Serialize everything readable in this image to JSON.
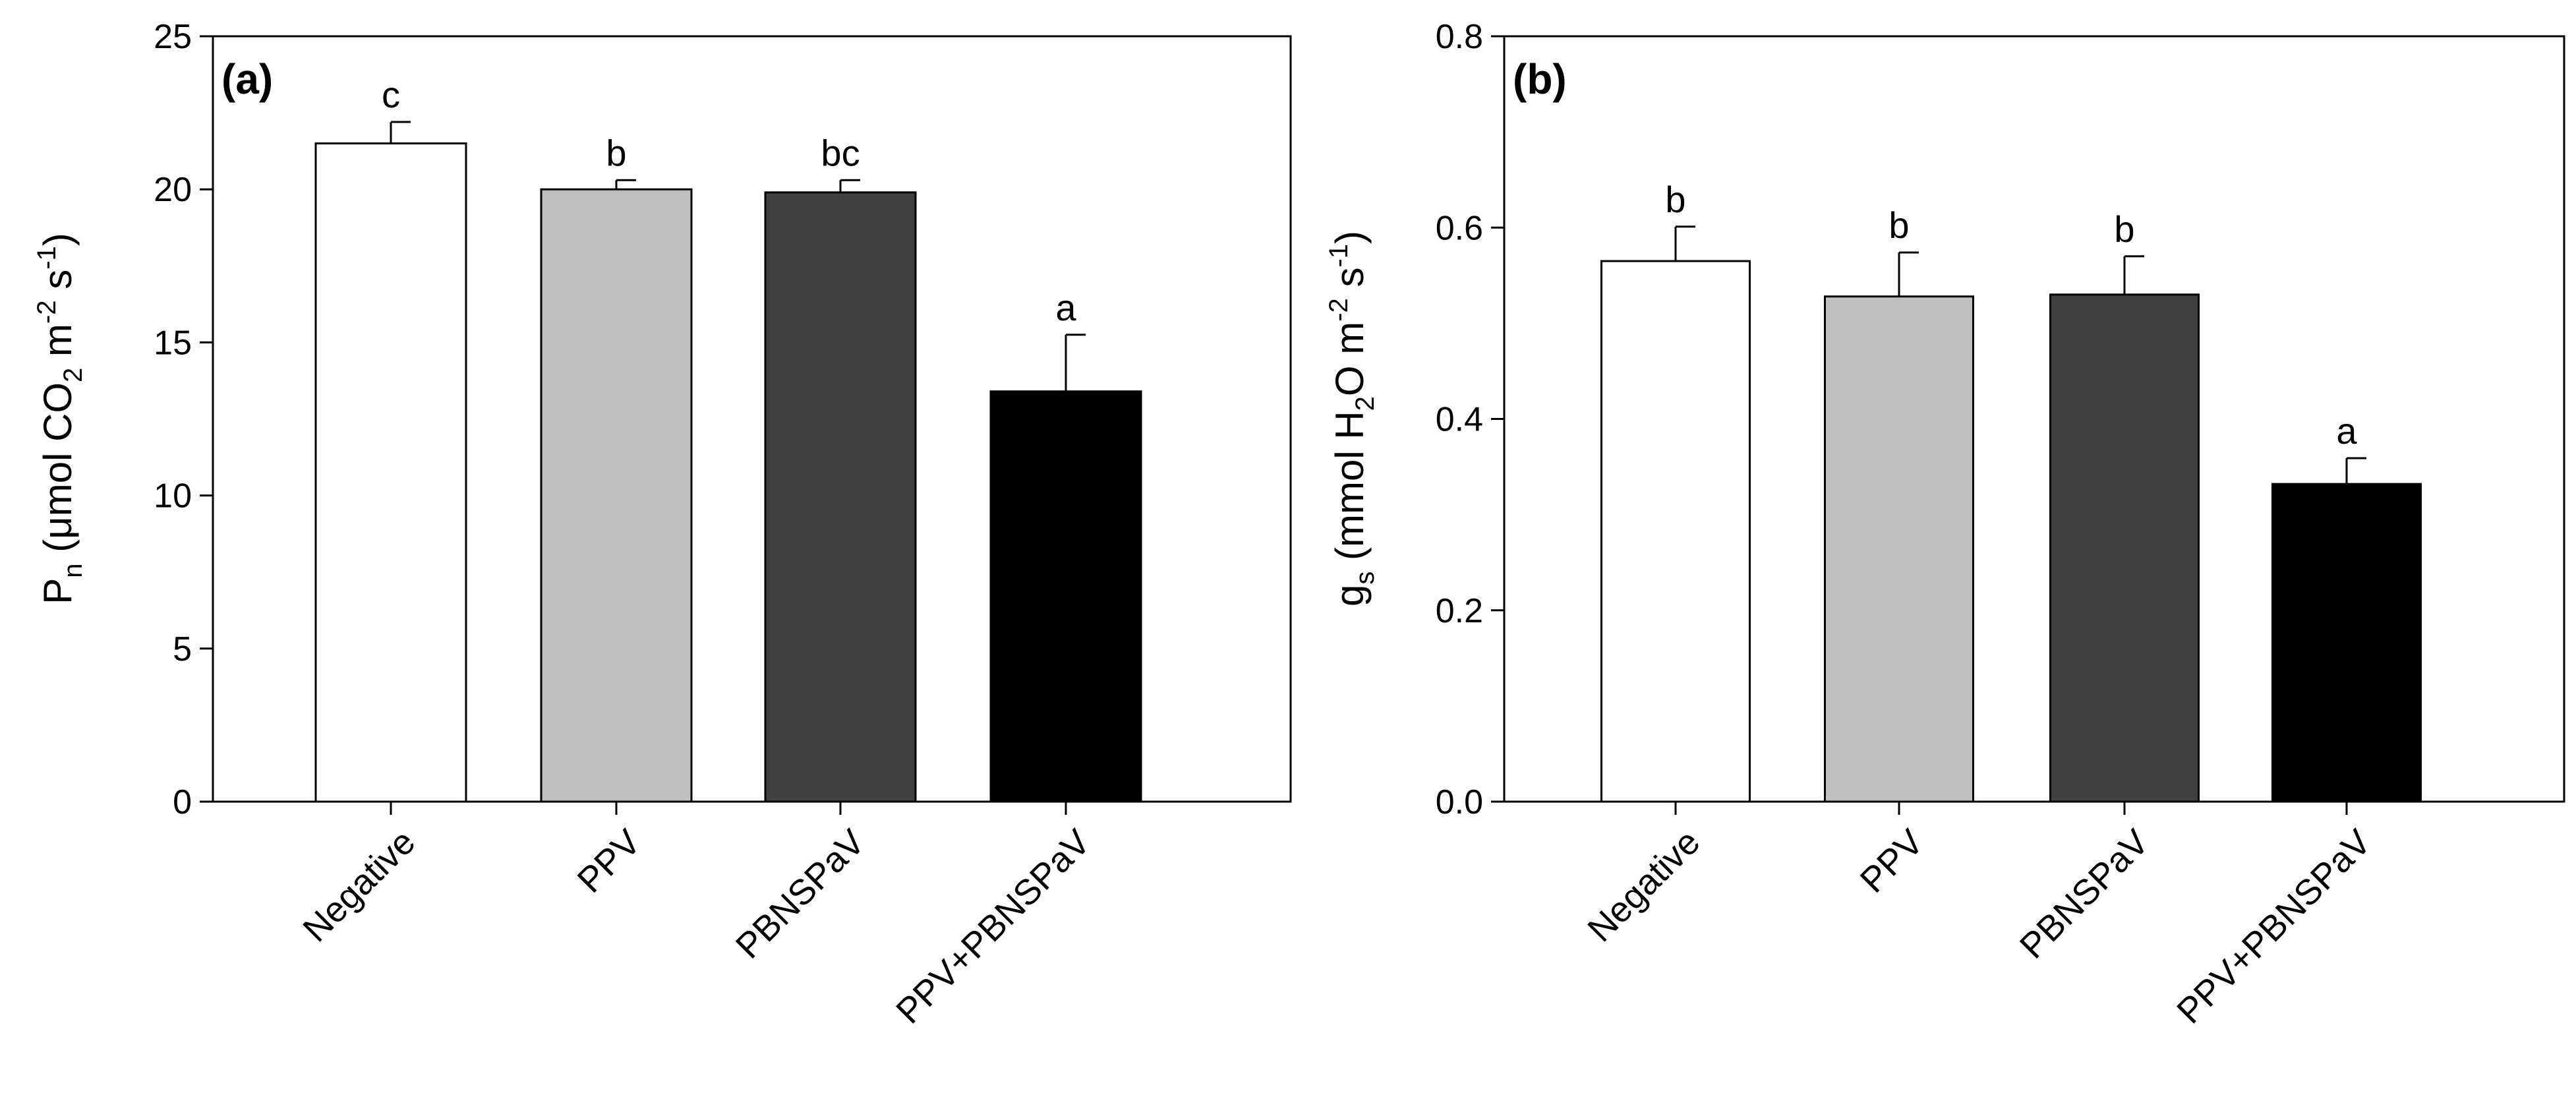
{
  "chart_data": [
    {
      "type": "bar",
      "panel": "(a)",
      "ylabel": {
        "pre": "P",
        "sub1": "n",
        "mid1": " (μmol CO",
        "sub2": "2",
        "mid2": " m",
        "sup1": "-2",
        "mid3": " s",
        "sup2": "-1",
        "post": ")"
      },
      "categories": [
        "Negative",
        "PPV",
        "PBNSPaV",
        "PPV+PBNSPaV"
      ],
      "values": [
        21.5,
        20.0,
        19.9,
        13.4
      ],
      "errors": [
        0.7,
        0.3,
        0.4,
        1.85
      ],
      "letters": [
        "c",
        "b",
        "bc",
        "a"
      ],
      "colors": [
        "#ffffff",
        "#c0c0c0",
        "#404040",
        "#000000"
      ],
      "ylim": [
        0,
        25
      ],
      "yticks": [
        0,
        5,
        10,
        15,
        20,
        25
      ],
      "ytick_labels": [
        "0",
        "5",
        "10",
        "15",
        "20",
        "25"
      ]
    },
    {
      "type": "bar",
      "panel": "(b)",
      "ylabel": {
        "pre": "g",
        "sub1": "s",
        "mid1": " (mmol H",
        "sub2": "2",
        "mid2": "O m",
        "sup1": "-2",
        "mid3": " s",
        "sup2": "-1",
        "post": ")"
      },
      "categories": [
        "Negative",
        "PPV",
        "PBNSPaV",
        "PPV+PBNSPaV"
      ],
      "values": [
        0.565,
        0.528,
        0.53,
        0.332
      ],
      "errors": [
        0.036,
        0.046,
        0.04,
        0.027
      ],
      "letters": [
        "b",
        "b",
        "b",
        "a"
      ],
      "colors": [
        "#ffffff",
        "#c0c0c0",
        "#404040",
        "#000000"
      ],
      "ylim": [
        0,
        0.8
      ],
      "yticks": [
        0,
        0.2,
        0.4,
        0.6,
        0.8
      ],
      "ytick_labels": [
        "0.0",
        "0.2",
        "0.4",
        "0.6",
        "0.8"
      ]
    }
  ]
}
